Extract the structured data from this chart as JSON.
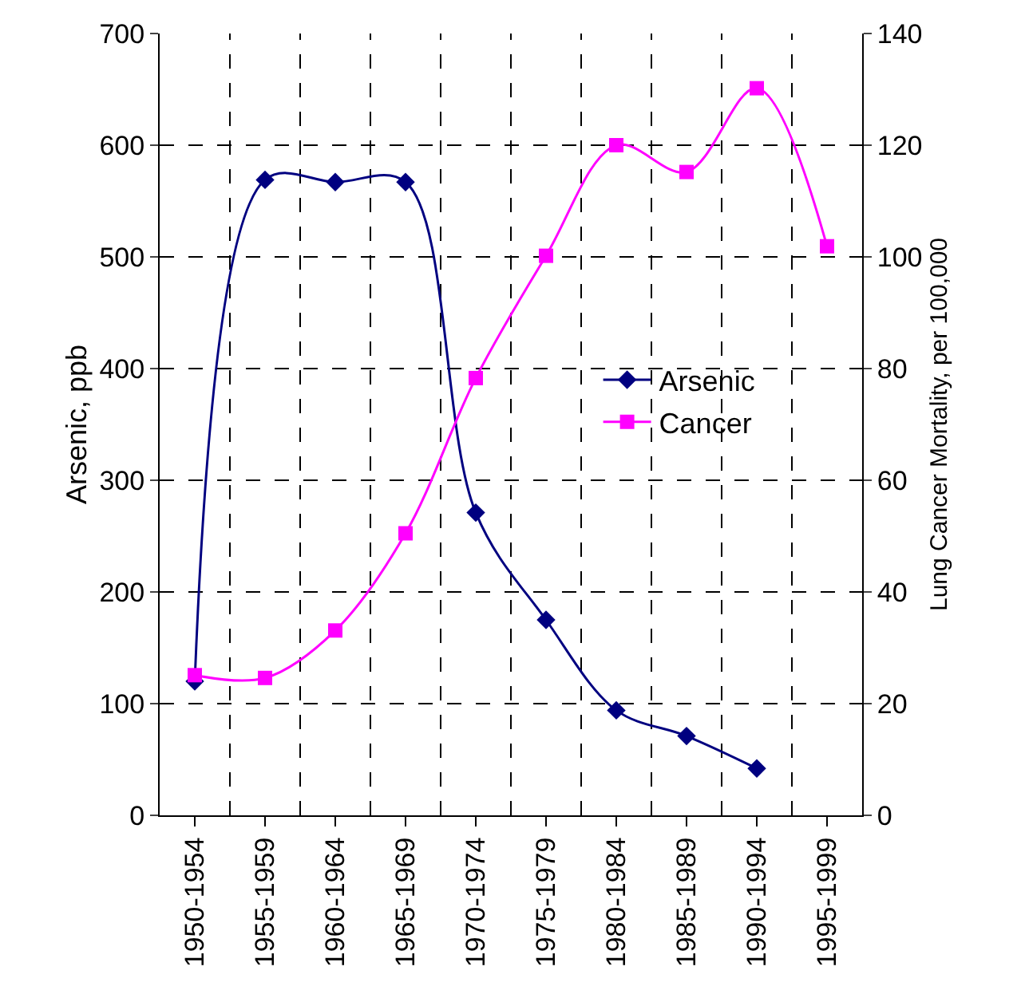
{
  "chart_data": {
    "type": "line",
    "ylabel": "Arsenic, ppb",
    "y2label": "Lung Cancer Mortality, per 100,000",
    "categories": [
      "1950-1954",
      "1955-1959",
      "1960-1964",
      "1965-1969",
      "1970-1974",
      "1975-1979",
      "1980-1984",
      "1985-1989",
      "1990-1994",
      "1995-1999"
    ],
    "series": [
      {
        "name": "Arsenic",
        "color": "#000080",
        "marker": "diamond",
        "values": [
          120,
          569,
          567,
          567,
          271,
          175,
          94,
          71,
          42,
          null
        ]
      },
      {
        "name": "Cancer",
        "color": "#ff00ff",
        "marker": "square",
        "axis": "y2",
        "values": [
          25.1,
          24.6,
          33.1,
          50.5,
          78.3,
          100.2,
          120,
          115.2,
          130.2,
          101.9
        ]
      }
    ],
    "ylim": [
      0,
      700
    ],
    "yticks": [
      0,
      100,
      200,
      300,
      400,
      500,
      600,
      700
    ],
    "y2lim": [
      0,
      140
    ],
    "y2ticks": [
      0,
      20,
      40,
      60,
      80,
      100,
      120,
      140
    ],
    "grid": true,
    "legend": "right"
  }
}
